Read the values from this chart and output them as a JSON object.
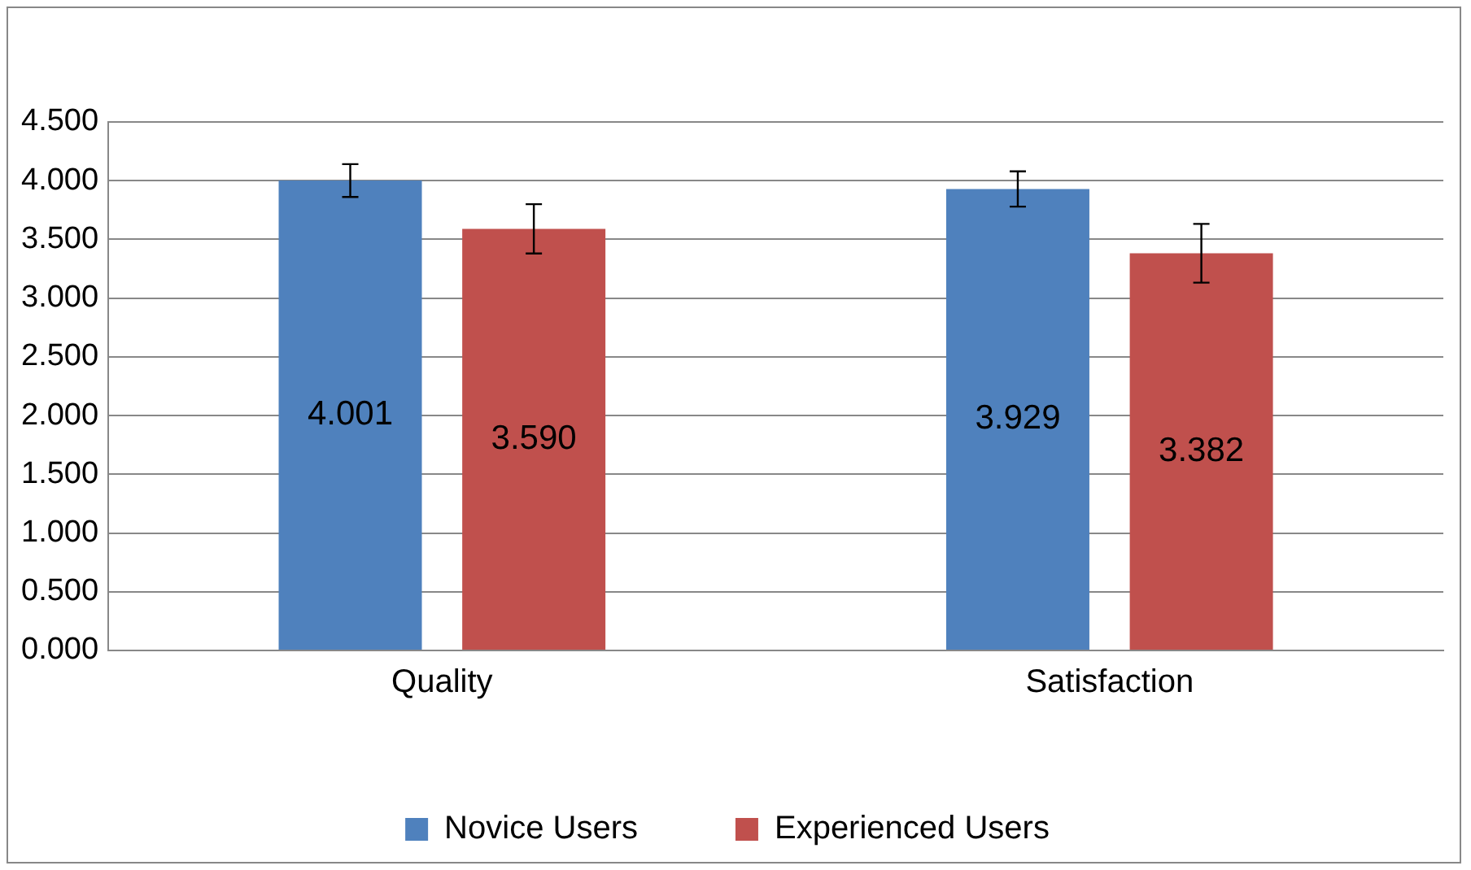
{
  "chart_data": {
    "type": "bar",
    "categories": [
      "Quality",
      "Satisfaction"
    ],
    "series": [
      {
        "name": "Novice Users",
        "color": "#4f81bd",
        "values": [
          4.001,
          3.929
        ],
        "value_labels": [
          "4.001",
          "3.929"
        ],
        "errors": [
          0.14,
          0.15
        ]
      },
      {
        "name": "Experienced Users",
        "color": "#c0504d",
        "values": [
          3.59,
          3.382
        ],
        "value_labels": [
          "3.590",
          "3.382"
        ],
        "errors": [
          0.21,
          0.25
        ]
      }
    ],
    "ylim": [
      0,
      4.5
    ],
    "yticks": [
      {
        "value": 0,
        "label": "0.000"
      },
      {
        "value": 0.5,
        "label": "0.500"
      },
      {
        "value": 1,
        "label": "1.000"
      },
      {
        "value": 1.5,
        "label": "1.500"
      },
      {
        "value": 2,
        "label": "2.000"
      },
      {
        "value": 2.5,
        "label": "2.500"
      },
      {
        "value": 3,
        "label": "3.000"
      },
      {
        "value": 3.5,
        "label": "3.500"
      },
      {
        "value": 4,
        "label": "4.000"
      },
      {
        "value": 4.5,
        "label": "4.500"
      }
    ],
    "grid": "y",
    "legend": "bottom"
  }
}
